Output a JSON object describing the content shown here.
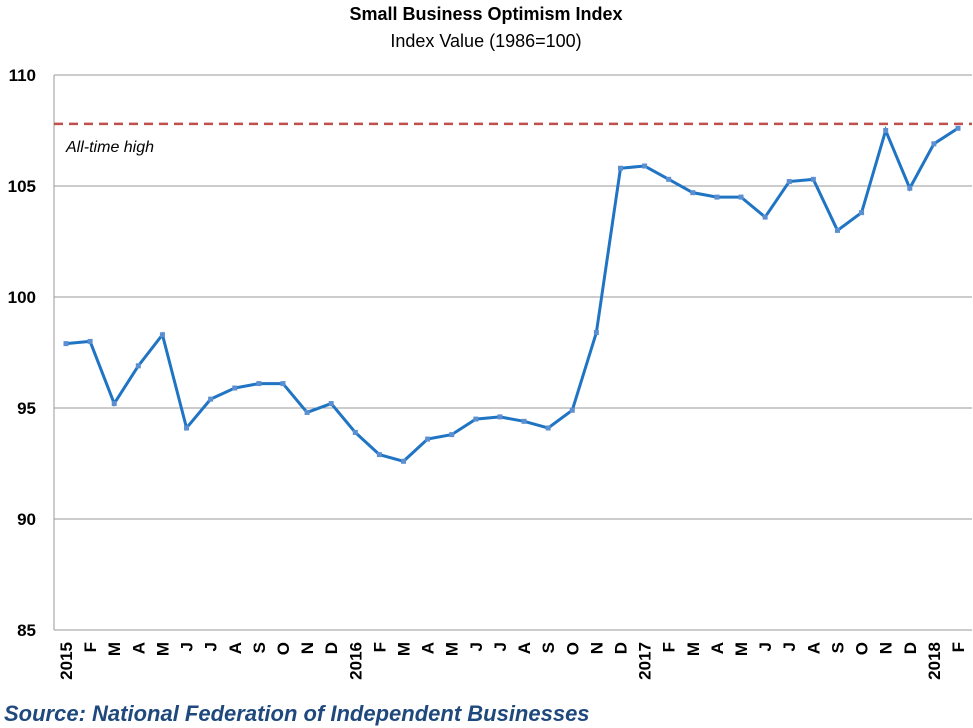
{
  "chart_data": {
    "type": "line",
    "title": "Small Business Optimism Index",
    "subtitle": "Index Value (1986=100)",
    "xlabel": "",
    "ylabel": "",
    "ylim": [
      85,
      110
    ],
    "yticks": [
      85,
      90,
      95,
      100,
      105,
      110
    ],
    "grid": true,
    "categories": [
      "2015",
      "F",
      "M",
      "A",
      "M",
      "J",
      "J",
      "A",
      "S",
      "O",
      "N",
      "D",
      "2016",
      "F",
      "M",
      "A",
      "M",
      "J",
      "J",
      "A",
      "S",
      "O",
      "N",
      "D",
      "2017",
      "F",
      "M",
      "A",
      "M",
      "J",
      "J",
      "A",
      "S",
      "O",
      "N",
      "D",
      "2018",
      "F"
    ],
    "series": [
      {
        "values": [
          97.9,
          98.0,
          95.2,
          96.9,
          98.3,
          94.1,
          95.4,
          95.9,
          96.1,
          96.1,
          94.8,
          95.2,
          93.9,
          92.9,
          92.6,
          93.6,
          93.8,
          94.5,
          94.6,
          94.4,
          94.1,
          94.9,
          98.4,
          105.8,
          105.9,
          105.3,
          104.7,
          104.5,
          104.5,
          103.6,
          105.2,
          105.3,
          103.0,
          103.8,
          107.5,
          104.9,
          106.9,
          107.6
        ],
        "color": "#1f74c4"
      }
    ],
    "reference_line": {
      "value": 107.8,
      "label": "All-time high",
      "color": "#c0504d"
    }
  },
  "source": "Source: National Federation of Independent Businesses"
}
